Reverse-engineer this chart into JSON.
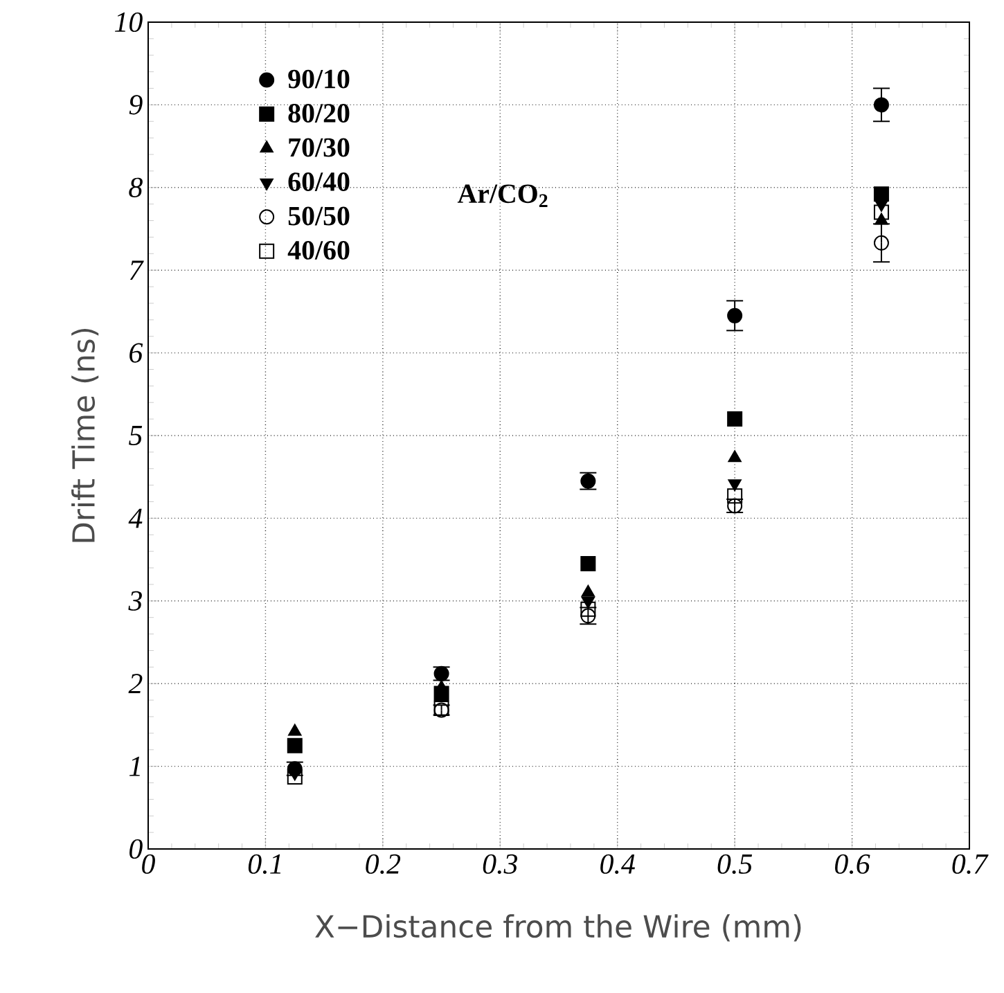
{
  "chart_data": {
    "type": "scatter",
    "xlabel": "X−Distance from the Wire (mm)",
    "ylabel": "Drift Time (ns)",
    "x": [
      0.125,
      0.25,
      0.375,
      0.5,
      0.625
    ],
    "series": [
      {
        "name": "90/10",
        "color": "#000000",
        "marker": "circle",
        "values": [
          0.97,
          2.12,
          4.45,
          6.45,
          9.0
        ],
        "errors": [
          0.08,
          0.08,
          0.1,
          0.18,
          0.2
        ]
      },
      {
        "name": "80/20",
        "color": "#000000",
        "marker": "square",
        "values": [
          1.25,
          1.88,
          3.45,
          5.2,
          7.92
        ]
      },
      {
        "name": "70/30",
        "color": "#000000",
        "marker": "triangle",
        "values": [
          1.42,
          1.95,
          3.1,
          4.73,
          7.6
        ]
      },
      {
        "name": "60/40",
        "color": "#000000",
        "marker": "triangle-down",
        "values": [
          0.92,
          null,
          3.0,
          4.42,
          7.8
        ]
      },
      {
        "name": "50/50",
        "color": "#000000",
        "marker": "circle-open",
        "values": [
          null,
          1.68,
          2.82,
          4.15,
          7.33
        ],
        "errors": [
          null,
          0.06,
          0.1,
          0.08,
          0.23
        ]
      },
      {
        "name": "40/60",
        "color": "#000000",
        "marker": "square-open",
        "values": [
          0.87,
          1.7,
          2.9,
          4.27,
          7.7
        ]
      }
    ],
    "xlim": [
      0,
      0.7
    ],
    "xticks": [
      0,
      0.1,
      0.2,
      0.3,
      0.4,
      0.5,
      0.6,
      0.7
    ],
    "ylim": [
      0,
      10
    ],
    "yticks": [
      0,
      1,
      2,
      3,
      4,
      5,
      6,
      7,
      8,
      9,
      10
    ],
    "grid": true,
    "legend": "top left",
    "annotations": [
      "Ar/CO$_{2}$"
    ]
  }
}
